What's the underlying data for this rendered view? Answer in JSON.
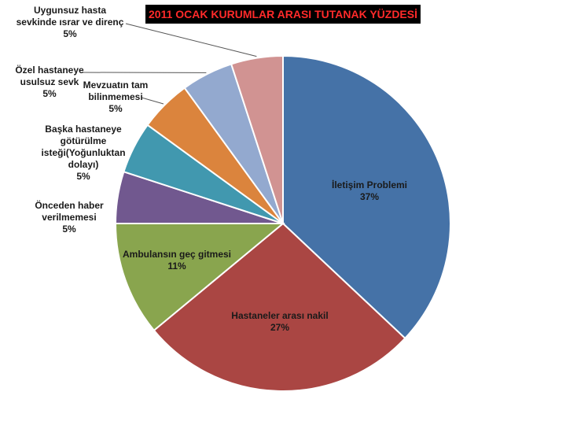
{
  "chart_data": {
    "type": "pie",
    "title": "2011 OCAK KURUMLAR ARASI TUTANAK YÜZDESİ",
    "slices": [
      {
        "label": "İletişim Problemi",
        "value": 37,
        "value_label": "37%",
        "color": "#4572a7"
      },
      {
        "label": "Hastaneler arası nakil",
        "value": 27,
        "value_label": "27%",
        "color": "#aa4643"
      },
      {
        "label": "Ambulansın geç gitmesi",
        "value": 11,
        "value_label": "11%",
        "color": "#89a54e"
      },
      {
        "label": "Önceden haber verilmemesi",
        "value": 5,
        "value_label": "5%",
        "color": "#71588f"
      },
      {
        "label": "Başka hastaneye götürülme isteği(Yoğunluktan dolayı)",
        "value": 5,
        "value_label": "5%",
        "color": "#4198af"
      },
      {
        "label": "Mevzuatın tam bilinmemesi",
        "value": 5,
        "value_label": "5%",
        "color": "#db843d"
      },
      {
        "label": "Özel hastaneye usulsuz sevk",
        "value": 5,
        "value_label": "5%",
        "color": "#93a9cf"
      },
      {
        "label": "Uygunsuz hasta sevkinde ısrar ve direnç",
        "value": 5,
        "value_label": "5%",
        "color": "#d19392"
      }
    ],
    "start": "12 o'clock",
    "direction": "clockwise",
    "label_lines": {
      "iletisim": [
        "İletişim Problemi",
        "37%"
      ],
      "nakil": [
        "Hastaneler arası nakil",
        "27%"
      ],
      "ambulans": [
        "Ambulansın geç gitmesi",
        "11%"
      ],
      "haber": [
        "Önceden haber",
        "verilmemesi",
        "5%"
      ],
      "baska": [
        "Başka hastaneye",
        "götürülme",
        "isteği(Yoğunluktan",
        "dolayı)",
        "5%"
      ],
      "mevzuat": [
        "Mevzuatın tam",
        "bilinmemesi",
        "5%"
      ],
      "ozel": [
        "Özel hastaneye",
        "usulsuz sevk",
        "5%"
      ],
      "uygunsuz": [
        "Uygunsuz hasta",
        "sevkinde ısrar ve direnç",
        "5%"
      ]
    }
  }
}
